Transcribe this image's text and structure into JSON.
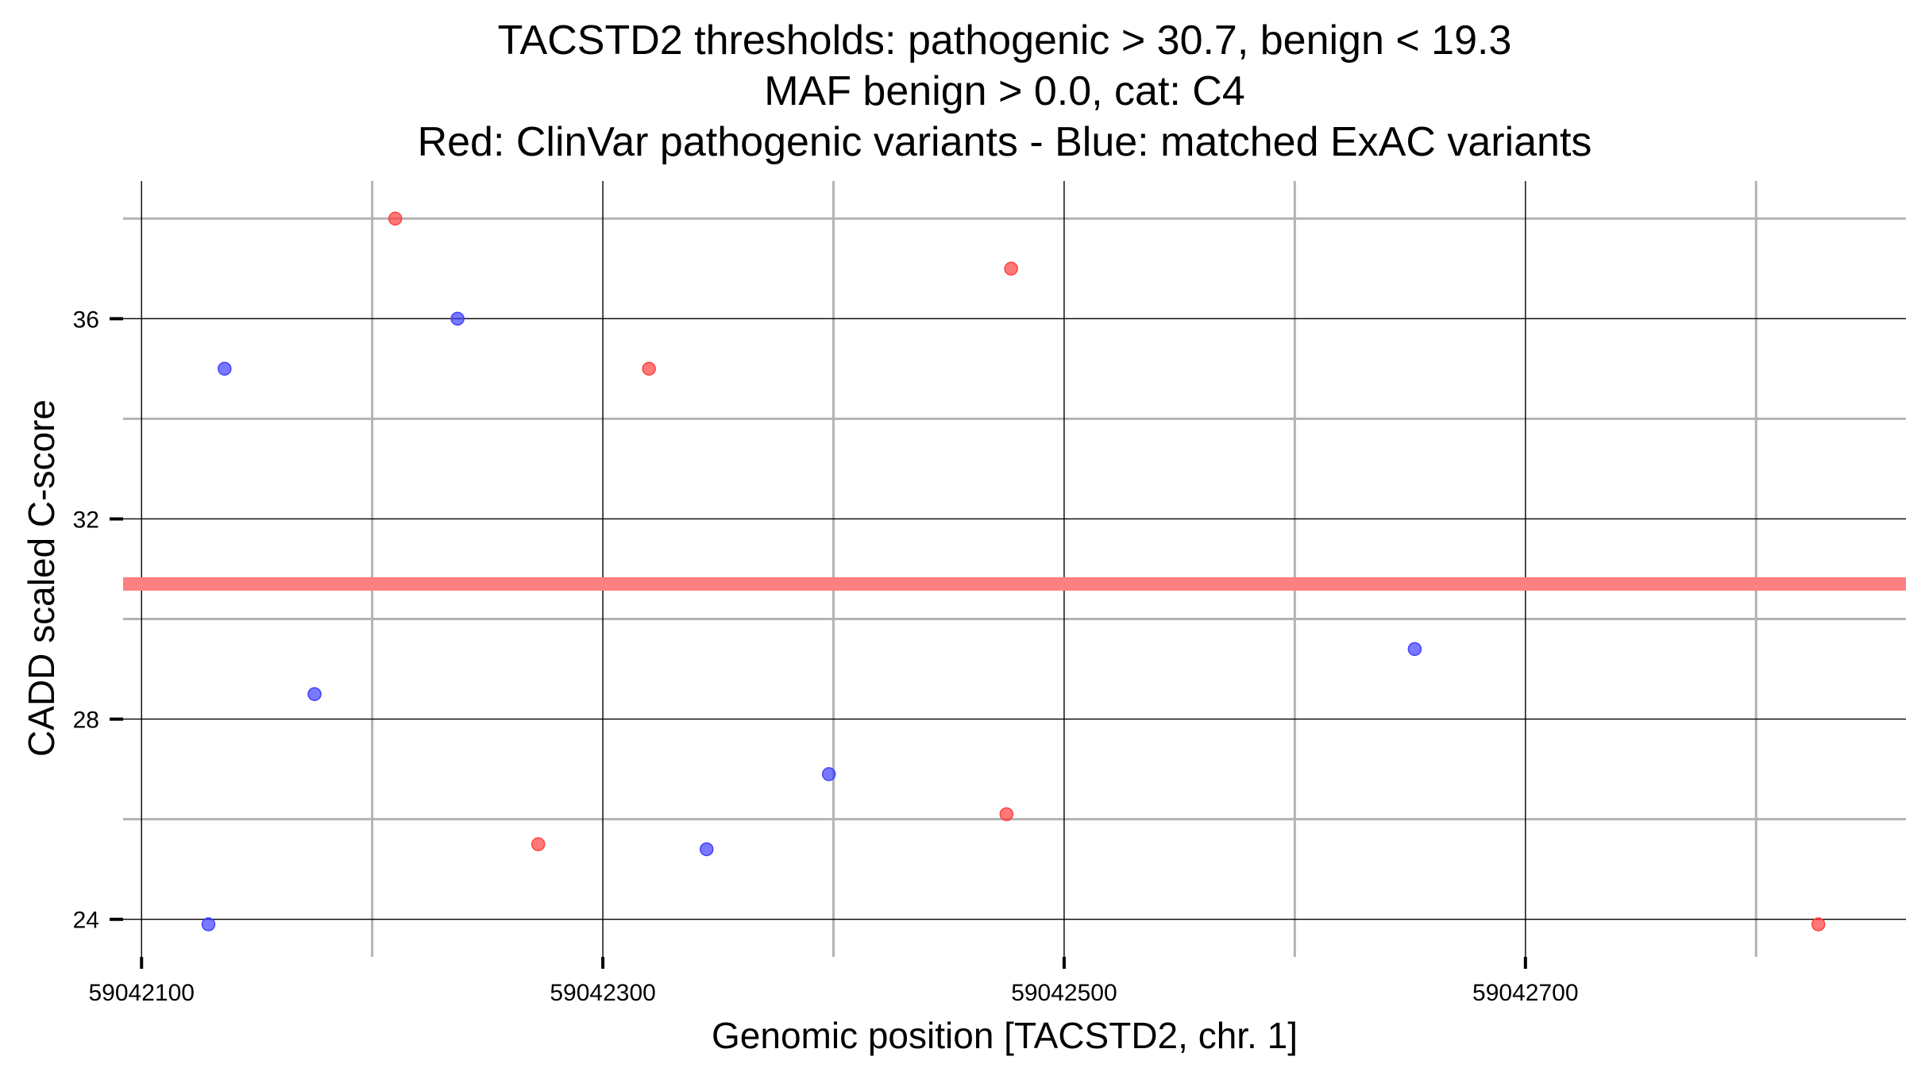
{
  "chart_data": {
    "type": "scatter",
    "title_lines": [
      "TACSTD2 thresholds: pathogenic > 30.7, benign < 19.3",
      "MAF benign > 0.0, cat: C4",
      "Red: ClinVar pathogenic variants - Blue: matched ExAC variants"
    ],
    "xlabel": "Genomic position [TACSTD2, chr. 1]",
    "ylabel": "CADD scaled C-score",
    "xlim": [
      59042092,
      59042865
    ],
    "ylim": [
      23.25,
      38.75
    ],
    "x_major_ticks": [
      59042100,
      59042300,
      59042500,
      59042700
    ],
    "x_minor_grid": [
      59042200,
      59042400,
      59042600,
      59042800
    ],
    "y_major_ticks": [
      24,
      28,
      32,
      36
    ],
    "y_minor_grid": [
      26,
      30,
      34,
      38
    ],
    "threshold_line": {
      "label": "pathogenic threshold",
      "y": 30.7,
      "color": "#ff8080"
    },
    "series": [
      {
        "name": "ClinVar pathogenic variants",
        "color": "#ff4040",
        "points": [
          {
            "x": 59042210,
            "y": 38.0
          },
          {
            "x": 59042272,
            "y": 25.5
          },
          {
            "x": 59042320,
            "y": 35.0
          },
          {
            "x": 59042475,
            "y": 26.1
          },
          {
            "x": 59042477,
            "y": 37.0
          },
          {
            "x": 59042827,
            "y": 23.9
          }
        ]
      },
      {
        "name": "matched ExAC variants",
        "color": "#4040ff",
        "points": [
          {
            "x": 59042129,
            "y": 23.9
          },
          {
            "x": 59042136,
            "y": 35.0
          },
          {
            "x": 59042175,
            "y": 28.5
          },
          {
            "x": 59042237,
            "y": 36.0
          },
          {
            "x": 59042345,
            "y": 25.4
          },
          {
            "x": 59042398,
            "y": 26.9
          },
          {
            "x": 59042652,
            "y": 29.4
          }
        ]
      }
    ]
  }
}
